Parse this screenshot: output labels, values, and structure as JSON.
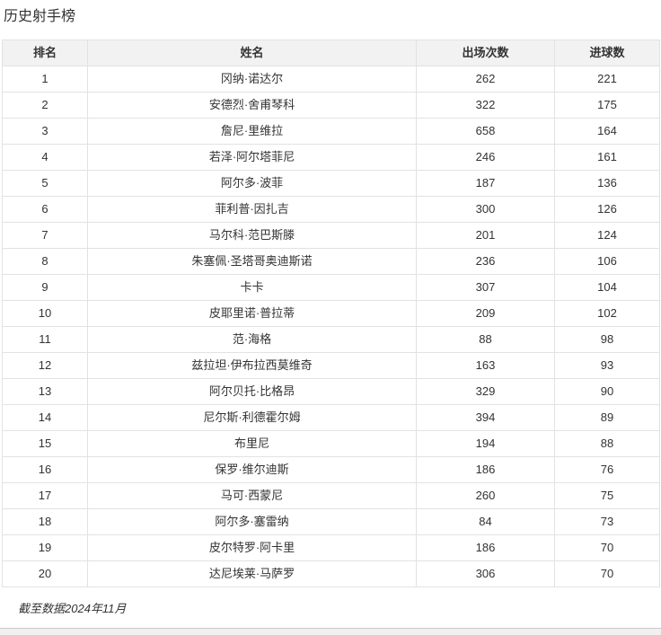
{
  "page": {
    "title": "历史射手榜",
    "footer_note": "截至数据2024年11月"
  },
  "table": {
    "columns": [
      "排名",
      "姓名",
      "出场次数",
      "进球数"
    ],
    "rows": [
      {
        "rank": "1",
        "name": "冈纳·诺达尔",
        "appearances": "262",
        "goals": "221"
      },
      {
        "rank": "2",
        "name": "安德烈·舍甫琴科",
        "appearances": "322",
        "goals": "175"
      },
      {
        "rank": "3",
        "name": "詹尼·里维拉",
        "appearances": "658",
        "goals": "164"
      },
      {
        "rank": "4",
        "name": "若泽·阿尔塔菲尼",
        "appearances": "246",
        "goals": "161"
      },
      {
        "rank": "5",
        "name": "阿尔多·波菲",
        "appearances": "187",
        "goals": "136"
      },
      {
        "rank": "6",
        "name": "菲利普·因扎吉",
        "appearances": "300",
        "goals": "126"
      },
      {
        "rank": "7",
        "name": "马尔科·范巴斯滕",
        "appearances": "201",
        "goals": "124"
      },
      {
        "rank": "8",
        "name": "朱塞佩·圣塔哥奥迪斯诺",
        "appearances": "236",
        "goals": "106"
      },
      {
        "rank": "9",
        "name": "卡卡",
        "appearances": "307",
        "goals": "104"
      },
      {
        "rank": "10",
        "name": "皮耶里诺·普拉蒂",
        "appearances": "209",
        "goals": "102"
      },
      {
        "rank": "11",
        "name": "范·海格",
        "appearances": "88",
        "goals": "98"
      },
      {
        "rank": "12",
        "name": "兹拉坦·伊布拉西莫维奇",
        "appearances": "163",
        "goals": "93"
      },
      {
        "rank": "13",
        "name": "阿尔贝托·比格昂",
        "appearances": "329",
        "goals": "90"
      },
      {
        "rank": "14",
        "name": "尼尔斯·利德霍尔姆",
        "appearances": "394",
        "goals": "89"
      },
      {
        "rank": "15",
        "name": "布里尼",
        "appearances": "194",
        "goals": "88"
      },
      {
        "rank": "16",
        "name": "保罗·维尔迪斯",
        "appearances": "186",
        "goals": "76"
      },
      {
        "rank": "17",
        "name": "马可·西蒙尼",
        "appearances": "260",
        "goals": "75"
      },
      {
        "rank": "18",
        "name": "阿尔多·塞雷纳",
        "appearances": "84",
        "goals": "73"
      },
      {
        "rank": "19",
        "name": "皮尔特罗·阿卡里",
        "appearances": "186",
        "goals": "70"
      },
      {
        "rank": "20",
        "name": "达尼埃莱·马萨罗",
        "appearances": "306",
        "goals": "70"
      }
    ]
  },
  "colors": {
    "header_bg": "#f2f2f2",
    "border": "#e2e2e2",
    "text": "#333333",
    "bottom_bar_bg": "#f0f0f0",
    "bottom_bar_border": "#c9c9c9"
  }
}
